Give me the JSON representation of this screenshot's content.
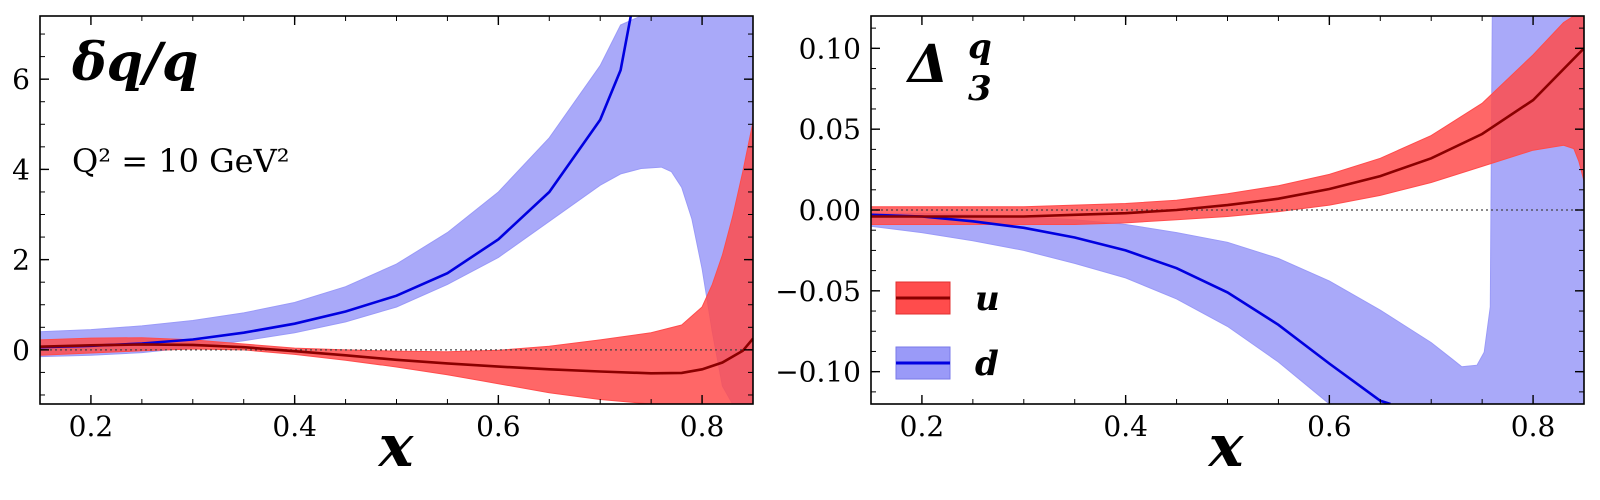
{
  "chart_data": [
    {
      "type": "line",
      "title": "δq/q",
      "annotation": "Q² = 10 GeV²",
      "xlabel": "x",
      "ylabel": "",
      "xlim": [
        0.15,
        0.85
      ],
      "ylim": [
        -1.2,
        7.4
      ],
      "xticks": [
        0.2,
        0.4,
        0.6,
        0.8
      ],
      "xtick_labels": [
        "0.2",
        "0.4",
        "0.6",
        "0.8"
      ],
      "yticks": [
        0,
        2,
        4,
        6
      ],
      "ytick_labels": [
        "0",
        "2",
        "4",
        "6"
      ],
      "zero_line": true,
      "grid": false,
      "series": [
        {
          "name": "d",
          "color": "#0000e0",
          "band_color": "#9a9af8",
          "x": [
            0.15,
            0.2,
            0.25,
            0.3,
            0.35,
            0.4,
            0.45,
            0.5,
            0.55,
            0.6,
            0.65,
            0.7,
            0.72,
            0.73
          ],
          "y": [
            0.06,
            0.09,
            0.14,
            0.23,
            0.38,
            0.58,
            0.85,
            1.2,
            1.7,
            2.45,
            3.5,
            5.1,
            6.2,
            7.4
          ],
          "band_x": [
            0.15,
            0.2,
            0.25,
            0.3,
            0.35,
            0.4,
            0.45,
            0.5,
            0.55,
            0.6,
            0.65,
            0.7,
            0.72,
            0.74,
            0.76,
            0.77,
            0.78,
            0.79,
            0.8,
            0.81,
            0.82,
            0.83,
            0.85
          ],
          "band_lower": [
            -0.15,
            -0.12,
            -0.06,
            0.06,
            0.2,
            0.38,
            0.62,
            0.95,
            1.45,
            2.05,
            2.85,
            3.65,
            3.9,
            4.02,
            4.05,
            3.95,
            3.6,
            2.9,
            1.8,
            0.4,
            -0.8,
            -1.2,
            -1.2
          ],
          "band_upper": [
            0.4,
            0.45,
            0.53,
            0.65,
            0.82,
            1.05,
            1.4,
            1.9,
            2.6,
            3.5,
            4.7,
            6.3,
            7.2,
            7.4,
            7.4,
            7.4,
            7.4,
            7.4,
            7.4,
            7.4,
            7.4,
            7.4,
            7.4
          ]
        },
        {
          "name": "u",
          "color": "#8b0000",
          "band_color": "#ff4c4c",
          "x": [
            0.15,
            0.2,
            0.25,
            0.3,
            0.35,
            0.4,
            0.45,
            0.5,
            0.55,
            0.6,
            0.65,
            0.7,
            0.75,
            0.78,
            0.8,
            0.82,
            0.84,
            0.85
          ],
          "y": [
            0.07,
            0.1,
            0.12,
            0.11,
            0.06,
            -0.03,
            -0.12,
            -0.22,
            -0.3,
            -0.37,
            -0.43,
            -0.48,
            -0.52,
            -0.51,
            -0.43,
            -0.28,
            -0.02,
            0.25
          ],
          "band_x": [
            0.15,
            0.2,
            0.25,
            0.3,
            0.35,
            0.4,
            0.45,
            0.5,
            0.55,
            0.6,
            0.65,
            0.7,
            0.75,
            0.78,
            0.8,
            0.81,
            0.82,
            0.83,
            0.84,
            0.85
          ],
          "band_lower": [
            -0.12,
            -0.07,
            -0.02,
            0.02,
            0.0,
            -0.1,
            -0.23,
            -0.38,
            -0.55,
            -0.75,
            -0.95,
            -1.1,
            -1.2,
            -1.2,
            -1.2,
            -1.2,
            -1.2,
            -1.2,
            -1.2,
            -1.2
          ],
          "band_upper": [
            0.22,
            0.26,
            0.27,
            0.22,
            0.13,
            0.04,
            0.0,
            -0.03,
            -0.04,
            -0.01,
            0.08,
            0.22,
            0.38,
            0.55,
            0.95,
            1.45,
            2.1,
            2.95,
            3.95,
            5.05
          ]
        }
      ]
    },
    {
      "type": "line",
      "title": "Δ",
      "title_sub": "3",
      "title_sup": "q",
      "xlabel": "x",
      "ylabel": "",
      "xlim": [
        0.15,
        0.85
      ],
      "ylim": [
        -0.12,
        0.12
      ],
      "xticks": [
        0.2,
        0.4,
        0.6,
        0.8
      ],
      "xtick_labels": [
        "0.2",
        "0.4",
        "0.6",
        "0.8"
      ],
      "yticks": [
        -0.1,
        -0.05,
        0.0,
        0.05,
        0.1
      ],
      "ytick_labels": [
        "−0.10",
        "−0.05",
        "0.00",
        "0.05",
        "0.10"
      ],
      "zero_line": true,
      "grid": false,
      "legend": {
        "position": "lower-left",
        "entries": [
          {
            "label": "u",
            "color": "#8b0000",
            "band_color": "#ff4c4c"
          },
          {
            "label": "d",
            "color": "#0000e0",
            "band_color": "#9a9af8"
          }
        ]
      },
      "series": [
        {
          "name": "d",
          "color": "#0000e0",
          "band_color": "#9a9af8",
          "x": [
            0.15,
            0.2,
            0.25,
            0.3,
            0.35,
            0.4,
            0.45,
            0.5,
            0.55,
            0.6,
            0.65,
            0.66
          ],
          "y": [
            -0.003,
            -0.004,
            -0.007,
            -0.011,
            -0.017,
            -0.025,
            -0.036,
            -0.051,
            -0.071,
            -0.095,
            -0.118,
            -0.12
          ],
          "band_x": [
            0.15,
            0.2,
            0.25,
            0.3,
            0.35,
            0.4,
            0.45,
            0.5,
            0.55,
            0.6,
            0.65,
            0.7,
            0.72,
            0.73,
            0.745,
            0.752,
            0.758,
            0.76,
            0.77,
            0.8,
            0.83,
            0.84,
            0.85
          ],
          "band_lower": [
            -0.01,
            -0.014,
            -0.019,
            -0.025,
            -0.033,
            -0.042,
            -0.055,
            -0.072,
            -0.094,
            -0.12,
            -0.12,
            -0.12,
            -0.12,
            -0.12,
            -0.12,
            -0.12,
            -0.12,
            -0.12,
            -0.12,
            -0.12,
            -0.12,
            -0.12,
            -0.12
          ],
          "band_upper": [
            -0.002,
            -0.002,
            -0.003,
            -0.004,
            -0.006,
            -0.009,
            -0.014,
            -0.02,
            -0.03,
            -0.044,
            -0.062,
            -0.082,
            -0.092,
            -0.097,
            -0.096,
            -0.088,
            -0.06,
            0.12,
            0.12,
            0.12,
            0.12,
            0.12,
            0.12
          ]
        },
        {
          "name": "u",
          "color": "#8b0000",
          "band_color": "#ff4c4c",
          "x": [
            0.15,
            0.2,
            0.25,
            0.3,
            0.35,
            0.4,
            0.45,
            0.5,
            0.55,
            0.6,
            0.65,
            0.7,
            0.75,
            0.8,
            0.85
          ],
          "y": [
            -0.004,
            -0.004,
            -0.004,
            -0.004,
            -0.003,
            -0.002,
            0.0,
            0.003,
            0.007,
            0.013,
            0.021,
            0.032,
            0.047,
            0.068,
            0.1
          ],
          "band_x": [
            0.15,
            0.2,
            0.25,
            0.3,
            0.35,
            0.4,
            0.45,
            0.5,
            0.55,
            0.6,
            0.65,
            0.7,
            0.75,
            0.8,
            0.83,
            0.84,
            0.845,
            0.85
          ],
          "band_lower": [
            -0.009,
            -0.009,
            -0.009,
            -0.009,
            -0.009,
            -0.008,
            -0.006,
            -0.004,
            -0.001,
            0.003,
            0.009,
            0.017,
            0.027,
            0.037,
            0.04,
            0.038,
            0.03,
            0.018
          ],
          "band_upper": [
            0.002,
            0.002,
            0.002,
            0.002,
            0.003,
            0.004,
            0.006,
            0.01,
            0.015,
            0.022,
            0.032,
            0.046,
            0.066,
            0.096,
            0.116,
            0.12,
            0.12,
            0.12
          ]
        }
      ]
    }
  ]
}
